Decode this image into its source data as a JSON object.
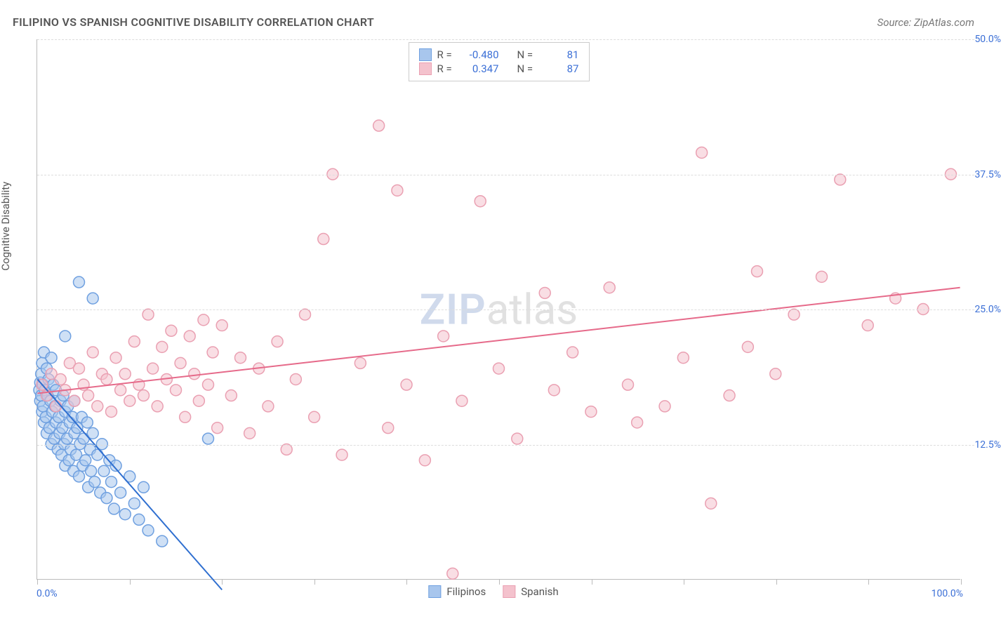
{
  "title": "FILIPINO VS SPANISH COGNITIVE DISABILITY CORRELATION CHART",
  "source": "Source: ZipAtlas.com",
  "watermark": {
    "zip": "ZIP",
    "atlas": "atlas"
  },
  "ylabel": "Cognitive Disability",
  "chart": {
    "type": "scatter",
    "xlim": [
      0,
      100
    ],
    "ylim": [
      0,
      50
    ],
    "xtick_positions": [
      0,
      10,
      20,
      30,
      40,
      50,
      60,
      70,
      80,
      90,
      100
    ],
    "ytick_positions": [
      12.5,
      25.0,
      37.5,
      50.0
    ],
    "ytick_labels": [
      "12.5%",
      "25.0%",
      "37.5%",
      "50.0%"
    ],
    "xlabel_min": "0.0%",
    "xlabel_max": "100.0%",
    "background_color": "#ffffff",
    "grid_color": "#dddddd",
    "axis_color": "#bbbbbb",
    "marker_radius": 8,
    "marker_opacity": 0.55,
    "line_width": 2,
    "series": [
      {
        "name": "Filipinos",
        "fill": "#a8c6ed",
        "stroke": "#6fa0e0",
        "line_color": "#2f6fd0",
        "R": "-0.480",
        "N": "81",
        "trend": {
          "x1": 0,
          "y1": 18.5,
          "x2": 20,
          "y2": -1.0
        },
        "points": [
          [
            0.2,
            17.5
          ],
          [
            0.3,
            18.2
          ],
          [
            0.3,
            16.5
          ],
          [
            0.4,
            19.0
          ],
          [
            0.4,
            17.0
          ],
          [
            0.5,
            15.5
          ],
          [
            0.5,
            20.0
          ],
          [
            0.6,
            18.0
          ],
          [
            0.6,
            16.0
          ],
          [
            0.7,
            21.0
          ],
          [
            0.7,
            14.5
          ],
          [
            0.8,
            17.5
          ],
          [
            0.9,
            15.0
          ],
          [
            1.0,
            19.5
          ],
          [
            1.0,
            13.5
          ],
          [
            1.1,
            17.0
          ],
          [
            1.2,
            18.5
          ],
          [
            1.3,
            14.0
          ],
          [
            1.4,
            16.5
          ],
          [
            1.5,
            20.5
          ],
          [
            1.5,
            12.5
          ],
          [
            1.6,
            15.5
          ],
          [
            1.7,
            18.0
          ],
          [
            1.8,
            13.0
          ],
          [
            1.9,
            16.0
          ],
          [
            2.0,
            14.5
          ],
          [
            2.0,
            17.5
          ],
          [
            2.2,
            12.0
          ],
          [
            2.3,
            15.0
          ],
          [
            2.4,
            13.5
          ],
          [
            2.5,
            16.5
          ],
          [
            2.6,
            11.5
          ],
          [
            2.7,
            14.0
          ],
          [
            2.8,
            17.0
          ],
          [
            2.9,
            12.5
          ],
          [
            3.0,
            15.5
          ],
          [
            3.0,
            10.5
          ],
          [
            3.2,
            13.0
          ],
          [
            3.3,
            16.0
          ],
          [
            3.4,
            11.0
          ],
          [
            3.5,
            14.5
          ],
          [
            3.6,
            12.0
          ],
          [
            3.8,
            15.0
          ],
          [
            3.9,
            10.0
          ],
          [
            4.0,
            13.5
          ],
          [
            4.0,
            16.5
          ],
          [
            4.2,
            11.5
          ],
          [
            4.3,
            14.0
          ],
          [
            4.5,
            9.5
          ],
          [
            4.6,
            12.5
          ],
          [
            4.8,
            15.0
          ],
          [
            4.9,
            10.5
          ],
          [
            5.0,
            13.0
          ],
          [
            5.2,
            11.0
          ],
          [
            5.4,
            14.5
          ],
          [
            5.5,
            8.5
          ],
          [
            5.7,
            12.0
          ],
          [
            5.8,
            10.0
          ],
          [
            6.0,
            13.5
          ],
          [
            6.2,
            9.0
          ],
          [
            6.5,
            11.5
          ],
          [
            6.8,
            8.0
          ],
          [
            7.0,
            12.5
          ],
          [
            7.2,
            10.0
          ],
          [
            7.5,
            7.5
          ],
          [
            7.8,
            11.0
          ],
          [
            8.0,
            9.0
          ],
          [
            8.3,
            6.5
          ],
          [
            8.5,
            10.5
          ],
          [
            9.0,
            8.0
          ],
          [
            9.5,
            6.0
          ],
          [
            10.0,
            9.5
          ],
          [
            10.5,
            7.0
          ],
          [
            11.0,
            5.5
          ],
          [
            11.5,
            8.5
          ],
          [
            12.0,
            4.5
          ],
          [
            4.5,
            27.5
          ],
          [
            6.0,
            26.0
          ],
          [
            18.5,
            13.0
          ],
          [
            3.0,
            22.5
          ],
          [
            13.5,
            3.5
          ]
        ]
      },
      {
        "name": "Spanish",
        "fill": "#f4c2cd",
        "stroke": "#eaa0b2",
        "line_color": "#e66a8a",
        "R": "0.347",
        "N": "87",
        "trend": {
          "x1": 0,
          "y1": 17.2,
          "x2": 100,
          "y2": 27.0
        },
        "points": [
          [
            0.5,
            18.0
          ],
          [
            1.0,
            17.0
          ],
          [
            1.5,
            19.0
          ],
          [
            2.0,
            16.0
          ],
          [
            2.5,
            18.5
          ],
          [
            3.0,
            17.5
          ],
          [
            3.5,
            20.0
          ],
          [
            4.0,
            16.5
          ],
          [
            4.5,
            19.5
          ],
          [
            5.0,
            18.0
          ],
          [
            5.5,
            17.0
          ],
          [
            6.0,
            21.0
          ],
          [
            6.5,
            16.0
          ],
          [
            7.0,
            19.0
          ],
          [
            7.5,
            18.5
          ],
          [
            8.0,
            15.5
          ],
          [
            8.5,
            20.5
          ],
          [
            9.0,
            17.5
          ],
          [
            9.5,
            19.0
          ],
          [
            10.0,
            16.5
          ],
          [
            10.5,
            22.0
          ],
          [
            11.0,
            18.0
          ],
          [
            11.5,
            17.0
          ],
          [
            12.0,
            24.5
          ],
          [
            12.5,
            19.5
          ],
          [
            13.0,
            16.0
          ],
          [
            13.5,
            21.5
          ],
          [
            14.0,
            18.5
          ],
          [
            14.5,
            23.0
          ],
          [
            15.0,
            17.5
          ],
          [
            15.5,
            20.0
          ],
          [
            16.0,
            15.0
          ],
          [
            16.5,
            22.5
          ],
          [
            17.0,
            19.0
          ],
          [
            17.5,
            16.5
          ],
          [
            18.0,
            24.0
          ],
          [
            18.5,
            18.0
          ],
          [
            19.0,
            21.0
          ],
          [
            19.5,
            14.0
          ],
          [
            20.0,
            23.5
          ],
          [
            21.0,
            17.0
          ],
          [
            22.0,
            20.5
          ],
          [
            23.0,
            13.5
          ],
          [
            24.0,
            19.5
          ],
          [
            25.0,
            16.0
          ],
          [
            26.0,
            22.0
          ],
          [
            27.0,
            12.0
          ],
          [
            28.0,
            18.5
          ],
          [
            29.0,
            24.5
          ],
          [
            30.0,
            15.0
          ],
          [
            31.0,
            31.5
          ],
          [
            32.0,
            37.5
          ],
          [
            33.0,
            11.5
          ],
          [
            35.0,
            20.0
          ],
          [
            37.0,
            42.0
          ],
          [
            38.0,
            14.0
          ],
          [
            39.0,
            36.0
          ],
          [
            40.0,
            18.0
          ],
          [
            42.0,
            11.0
          ],
          [
            44.0,
            22.5
          ],
          [
            45.0,
            0.5
          ],
          [
            46.0,
            16.5
          ],
          [
            48.0,
            35.0
          ],
          [
            50.0,
            19.5
          ],
          [
            52.0,
            13.0
          ],
          [
            55.0,
            26.5
          ],
          [
            56.0,
            17.5
          ],
          [
            58.0,
            21.0
          ],
          [
            60.0,
            15.5
          ],
          [
            62.0,
            27.0
          ],
          [
            64.0,
            18.0
          ],
          [
            65.0,
            14.5
          ],
          [
            68.0,
            16.0
          ],
          [
            70.0,
            20.5
          ],
          [
            72.0,
            39.5
          ],
          [
            73.0,
            7.0
          ],
          [
            75.0,
            17.0
          ],
          [
            77.0,
            21.5
          ],
          [
            78.0,
            28.5
          ],
          [
            80.0,
            19.0
          ],
          [
            82.0,
            24.5
          ],
          [
            85.0,
            28.0
          ],
          [
            87.0,
            37.0
          ],
          [
            90.0,
            23.5
          ],
          [
            93.0,
            26.0
          ],
          [
            96.0,
            25.0
          ],
          [
            99.0,
            37.5
          ]
        ]
      }
    ]
  },
  "legend_top": {
    "R_label": "R =",
    "N_label": "N ="
  },
  "colors": {
    "tick_label": "#3b6fd6",
    "text": "#555555"
  }
}
